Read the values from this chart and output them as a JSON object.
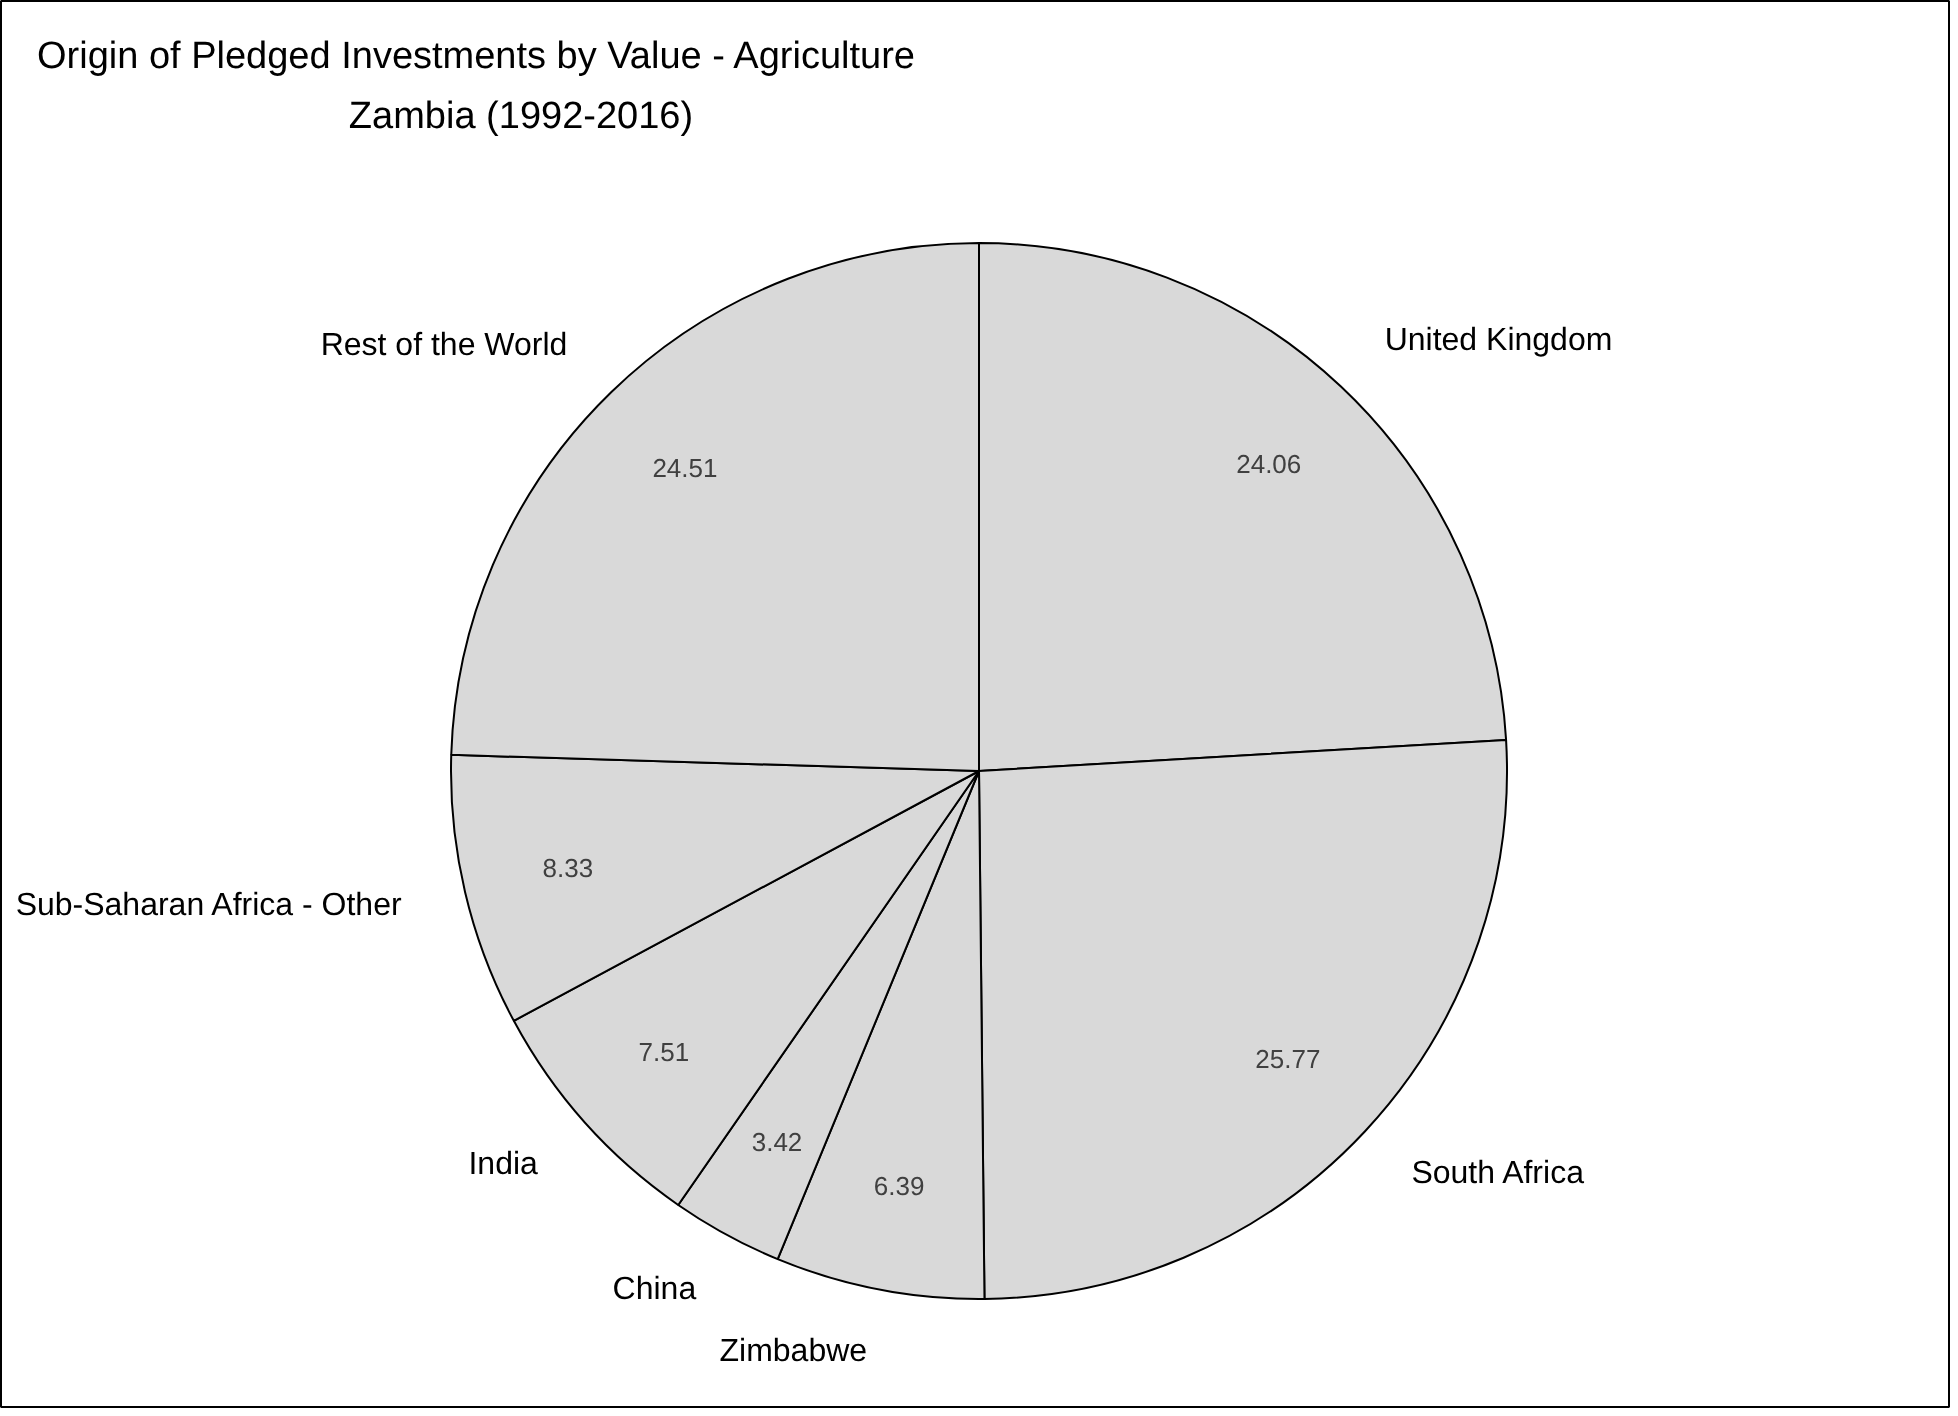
{
  "chart_data": {
    "type": "pie",
    "title": "Origin of Pledged Investments by Value - Agriculture",
    "subtitle": "Zambia (1992-2016)",
    "categories": [
      "United Kingdom",
      "South Africa",
      "Zimbabwe",
      "China",
      "India",
      "Sub-Saharan Africa - Other",
      "Rest of the World"
    ],
    "values": [
      24.06,
      25.77,
      6.39,
      3.42,
      7.51,
      8.33,
      24.51
    ],
    "colors": [
      "#d9d9d9",
      "#d9d9d9",
      "#d9d9d9",
      "#d9d9d9",
      "#d9d9d9",
      "#d9d9d9",
      "#d9d9d9"
    ],
    "data_labels": true
  }
}
